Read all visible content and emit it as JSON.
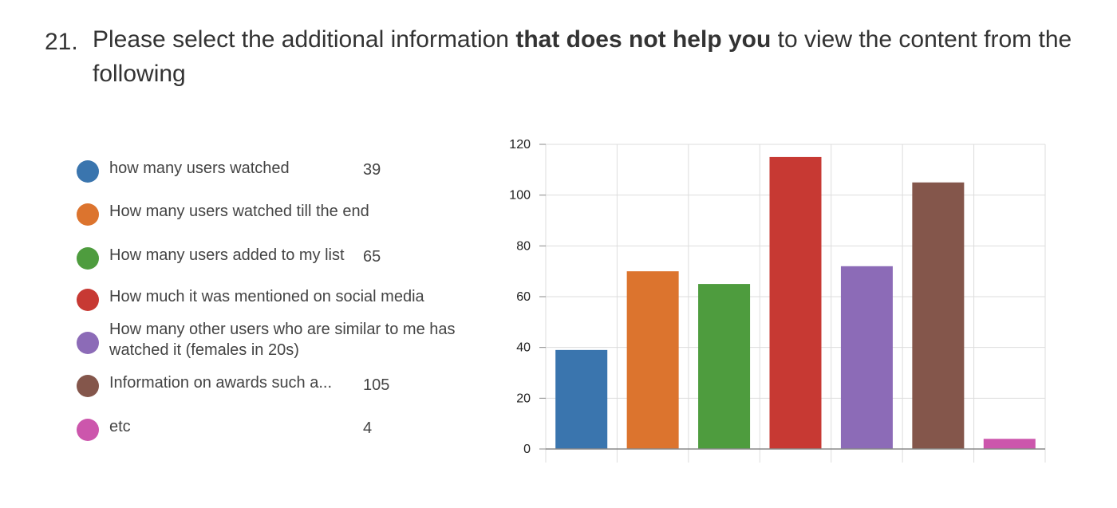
{
  "question": {
    "number": "21.",
    "text_before": "Please select the additional information ",
    "text_bold": "that does not help you",
    "text_after": " to view the content from the following"
  },
  "legend": [
    {
      "label": "how many users watched",
      "count": "39",
      "color": "#3a75ae"
    },
    {
      "label": "How many users watched till the end",
      "count": "",
      "color": "#dc742e"
    },
    {
      "label": "How many users added to my list",
      "count": "65",
      "color": "#4e9c3e"
    },
    {
      "label": "How much it was mentioned on social media",
      "count": "",
      "color": "#c73933"
    },
    {
      "label": "How many other users who are similar to me has watched it (females in 20s)",
      "count": "",
      "color": "#8c6bb7"
    },
    {
      "label": "Information on awards such a...",
      "count": "105",
      "color": "#84564b"
    },
    {
      "label": "etc",
      "count": "4",
      "color": "#cc56ac"
    }
  ],
  "chart_data": {
    "type": "bar",
    "categories": [
      "how many users watched",
      "How many users watched till the end",
      "How many users added to my list",
      "How much it was mentioned on social media",
      "How many other users who are similar to me has watched it (females in 20s)",
      "Information on awards such a...",
      "etc"
    ],
    "values": [
      39,
      70,
      65,
      115,
      72,
      105,
      4
    ],
    "colors": [
      "#3a75ae",
      "#dc742e",
      "#4e9c3e",
      "#c73933",
      "#8c6bb7",
      "#84564b",
      "#cc56ac"
    ],
    "ylim": [
      0,
      120
    ],
    "yticks": [
      0,
      20,
      40,
      60,
      80,
      100,
      120
    ],
    "grid": true,
    "title": "",
    "xlabel": "",
    "ylabel": ""
  }
}
